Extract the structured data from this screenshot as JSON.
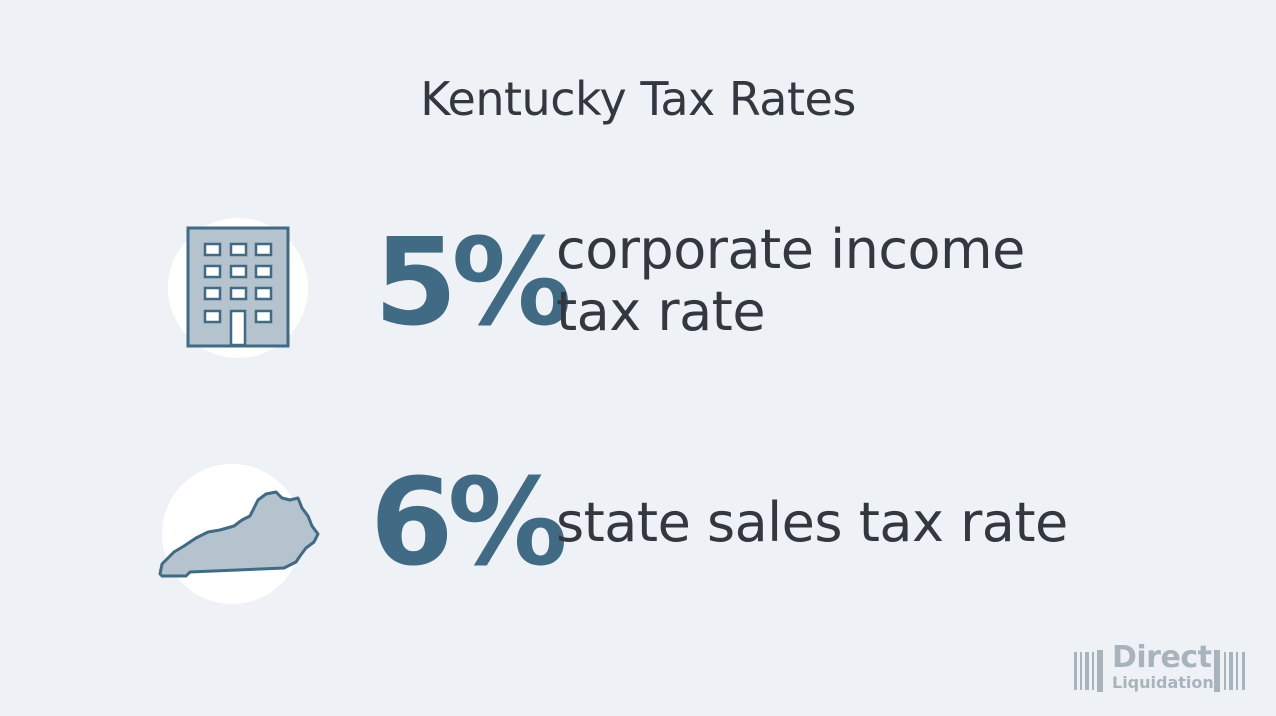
{
  "title": "Kentucky Tax Rates",
  "stats": [
    {
      "value": "5%",
      "label_line1": "corporate income",
      "label_line2": "tax rate",
      "icon": "office-building-icon"
    },
    {
      "value": "6%",
      "label_line1": "state sales tax rate",
      "icon": "kentucky-state-icon"
    }
  ],
  "logo": {
    "line1": "Direct",
    "line2": "Liquidation"
  },
  "colors": {
    "background": "#eef2f6",
    "accent": "#416a85",
    "icon_fill": "#b4c3cd",
    "text": "#333840"
  }
}
